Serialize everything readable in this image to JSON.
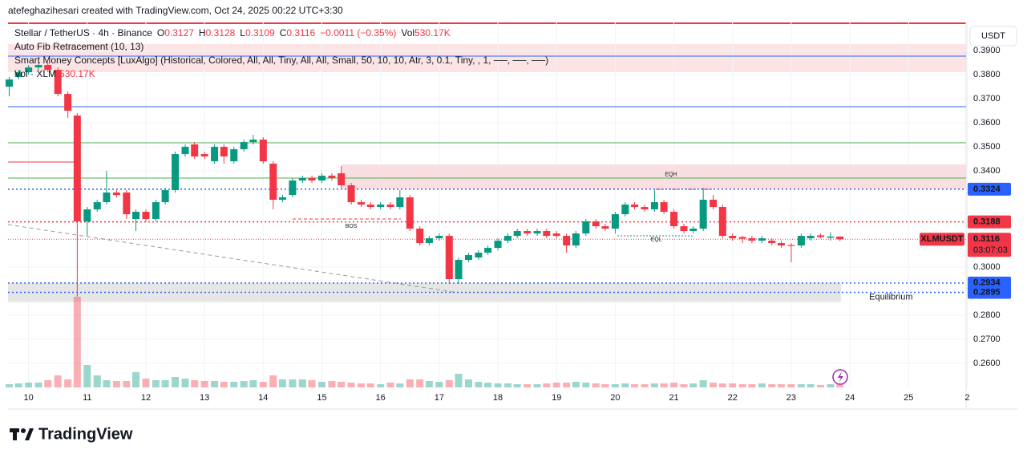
{
  "header": {
    "title": "atefeghazihesari created with TradingView.com, Oct 24, 2025 00:22 UTC+3:30",
    "currency": "USDT",
    "brand": "TradingView"
  },
  "legend": {
    "symbol": "Stellar / TetherUS · 4h · Binance",
    "ohlc": [
      {
        "key": "O",
        "value": "0.3127"
      },
      {
        "key": "H",
        "value": "0.3128"
      },
      {
        "key": "L",
        "value": "0.3109"
      },
      {
        "key": "C",
        "value": "0.3116"
      }
    ],
    "change": "−0.0011 (−0.35%)",
    "vol_key": "Vol",
    "vol": "530.17K",
    "indicators": [
      "Auto Fib Retracement (10, 13)",
      "Smart Money Concepts [LuxAlgo] (Historical, Colored, All, All, Tiny, All, All, Small, 50, 10, 10, Atr, 3, 0.1, Tiny, , 1, ──, ──, ──)"
    ],
    "volume_key": "Vol · XLM",
    "volume_value": "530.17K"
  },
  "chart_data": {
    "type": "candlestick",
    "up_color": "#089981",
    "down_color": "#f23645",
    "x": [
      9.67,
      9.83,
      10,
      10.17,
      10.33,
      10.5,
      10.67,
      10.83,
      11,
      11.17,
      11.33,
      11.5,
      11.67,
      11.83,
      12,
      12.17,
      12.33,
      12.5,
      12.67,
      12.83,
      13,
      13.17,
      13.33,
      13.5,
      13.67,
      13.83,
      14,
      14.17,
      14.33,
      14.5,
      14.67,
      14.83,
      15,
      15.17,
      15.33,
      15.5,
      15.67,
      15.83,
      16,
      16.17,
      16.33,
      16.5,
      16.67,
      16.83,
      17,
      17.17,
      17.33,
      17.5,
      17.67,
      17.83,
      18,
      18.17,
      18.33,
      18.5,
      18.67,
      18.83,
      19,
      19.17,
      19.33,
      19.5,
      19.67,
      19.83,
      20,
      20.17,
      20.33,
      20.5,
      20.67,
      20.83,
      21,
      21.17,
      21.33,
      21.5,
      21.67,
      21.83,
      22,
      22.17,
      22.33,
      22.5,
      22.67,
      22.83,
      23,
      23.17,
      23.33,
      23.5,
      23.67,
      23.83
    ],
    "open": [
      0.375,
      0.379,
      0.381,
      0.383,
      0.384,
      0.382,
      0.372,
      0.363,
      0.319,
      0.324,
      0.327,
      0.331,
      0.331,
      0.32,
      0.323,
      0.32,
      0.327,
      0.332,
      0.347,
      0.351,
      0.347,
      0.344,
      0.35,
      0.344,
      0.349,
      0.352,
      0.353,
      0.343,
      0.328,
      0.33,
      0.336,
      0.337,
      0.336,
      0.338,
      0.339,
      0.334,
      0.327,
      0.326,
      0.325,
      0.326,
      0.325,
      0.329,
      0.316,
      0.31,
      0.312,
      0.313,
      0.295,
      0.303,
      0.304,
      0.306,
      0.308,
      0.311,
      0.313,
      0.315,
      0.314,
      0.315,
      0.314,
      0.313,
      0.309,
      0.314,
      0.319,
      0.317,
      0.316,
      0.322,
      0.326,
      0.325,
      0.324,
      0.327,
      0.323,
      0.317,
      0.315,
      0.316,
      0.328,
      0.325,
      0.313,
      0.3125,
      0.312,
      0.311,
      0.311,
      0.31,
      0.3092,
      0.309,
      0.312,
      0.3132,
      0.3122,
      0.3127
    ],
    "high": [
      0.379,
      0.382,
      0.384,
      0.385,
      0.385,
      0.383,
      0.373,
      0.364,
      0.325,
      0.328,
      0.34,
      0.332,
      0.332,
      0.324,
      0.324,
      0.328,
      0.333,
      0.348,
      0.351,
      0.352,
      0.348,
      0.351,
      0.351,
      0.35,
      0.353,
      0.355,
      0.354,
      0.344,
      0.33,
      0.337,
      0.338,
      0.338,
      0.339,
      0.339,
      0.342,
      0.335,
      0.328,
      0.327,
      0.327,
      0.327,
      0.332,
      0.33,
      0.317,
      0.313,
      0.314,
      0.314,
      0.304,
      0.306,
      0.307,
      0.309,
      0.312,
      0.314,
      0.316,
      0.316,
      0.316,
      0.316,
      0.315,
      0.314,
      0.315,
      0.32,
      0.32,
      0.318,
      0.323,
      0.327,
      0.327,
      0.326,
      0.332,
      0.328,
      0.324,
      0.318,
      0.317,
      0.333,
      0.33,
      0.326,
      0.314,
      0.313,
      0.313,
      0.313,
      0.312,
      0.311,
      0.31,
      0.314,
      0.314,
      0.314,
      0.3145,
      0.3128
    ],
    "low": [
      0.371,
      0.378,
      0.38,
      0.382,
      0.381,
      0.371,
      0.362,
      0.2877,
      0.313,
      0.323,
      0.326,
      0.329,
      0.32,
      0.315,
      0.319,
      0.319,
      0.326,
      0.331,
      0.346,
      0.345,
      0.345,
      0.343,
      0.343,
      0.343,
      0.348,
      0.351,
      0.343,
      0.324,
      0.327,
      0.329,
      0.335,
      0.335,
      0.335,
      0.336,
      0.333,
      0.326,
      0.325,
      0.324,
      0.324,
      0.324,
      0.324,
      0.315,
      0.309,
      0.309,
      0.311,
      0.293,
      0.293,
      0.302,
      0.303,
      0.305,
      0.307,
      0.31,
      0.312,
      0.313,
      0.313,
      0.312,
      0.312,
      0.306,
      0.308,
      0.313,
      0.316,
      0.315,
      0.314,
      0.321,
      0.324,
      0.323,
      0.323,
      0.322,
      0.316,
      0.314,
      0.314,
      0.315,
      0.324,
      0.312,
      0.311,
      0.31,
      0.31,
      0.31,
      0.309,
      0.308,
      0.302,
      0.308,
      0.311,
      0.312,
      0.311,
      0.3109
    ],
    "close": [
      0.378,
      0.381,
      0.383,
      0.384,
      0.382,
      0.372,
      0.365,
      0.319,
      0.324,
      0.327,
      0.331,
      0.33,
      0.322,
      0.323,
      0.32,
      0.327,
      0.332,
      0.347,
      0.35,
      0.346,
      0.346,
      0.35,
      0.346,
      0.349,
      0.352,
      0.353,
      0.344,
      0.328,
      0.329,
      0.336,
      0.337,
      0.336,
      0.338,
      0.337,
      0.334,
      0.327,
      0.326,
      0.325,
      0.326,
      0.325,
      0.329,
      0.316,
      0.31,
      0.312,
      0.313,
      0.295,
      0.303,
      0.305,
      0.306,
      0.308,
      0.311,
      0.313,
      0.315,
      0.314,
      0.315,
      0.313,
      0.313,
      0.309,
      0.314,
      0.319,
      0.317,
      0.316,
      0.322,
      0.326,
      0.325,
      0.324,
      0.327,
      0.323,
      0.317,
      0.315,
      0.316,
      0.328,
      0.325,
      0.313,
      0.312,
      0.3118,
      0.311,
      0.312,
      0.31,
      0.309,
      0.3088,
      0.313,
      0.313,
      0.3125,
      0.3127,
      0.3116
    ],
    "volume": [
      520,
      650,
      780,
      780,
      1170,
      1950,
      1300,
      14690,
      3640,
      1950,
      1170,
      1040,
      1040,
      2470,
      1430,
      1170,
      1170,
      1690,
      1430,
      1170,
      1040,
      1040,
      910,
      910,
      1040,
      1170,
      910,
      1950,
      1300,
      1300,
      1300,
      1170,
      910,
      1040,
      910,
      780,
      650,
      650,
      520,
      780,
      650,
      1300,
      1300,
      1040,
      910,
      1170,
      2210,
      1300,
      910,
      780,
      650,
      650,
      520,
      520,
      520,
      650,
      780,
      780,
      910,
      780,
      650,
      520,
      520,
      650,
      520,
      520,
      650,
      650,
      780,
      520,
      650,
      1170,
      780,
      650,
      650,
      520,
      520,
      650,
      520,
      520,
      520,
      520,
      520,
      390,
      520,
      530.17
    ],
    "xlim": [
      9.65,
      25.98
    ],
    "xticks": [
      10,
      11,
      12,
      13,
      14,
      15,
      16,
      17,
      18,
      19,
      20,
      21,
      22,
      23,
      24,
      25,
      {
        "value": 26,
        "label": "2"
      }
    ],
    "ylim": [
      0.25,
      0.4017
    ],
    "yticks": [
      {
        "value": 0.39,
        "label": "0.3900"
      },
      {
        "value": 0.38,
        "label": "0.3800"
      },
      {
        "value": 0.37,
        "label": "0.3700"
      },
      {
        "value": 0.36,
        "label": "0.3600"
      },
      {
        "value": 0.35,
        "label": "0.3500"
      },
      {
        "value": 0.34,
        "label": "0.3400"
      },
      {
        "value": 0.3,
        "label": "0.3000"
      },
      {
        "value": 0.28,
        "label": "0.2800"
      },
      {
        "value": 0.27,
        "label": "0.2700"
      },
      {
        "value": 0.26,
        "label": "0.2600"
      }
    ],
    "grid": true,
    "levels": [
      {
        "value": 0.3877,
        "color": "#2962ff"
      },
      {
        "value": 0.3667,
        "color": "#2962ff"
      },
      {
        "value": 0.3517,
        "color": "#4caf50"
      },
      {
        "value": 0.337,
        "color": "#4caf50"
      }
    ],
    "zones": [
      {
        "top": 0.3427,
        "bottom": 0.3324,
        "from": 15.33,
        "to": 25.98,
        "color": "#f8d7da"
      },
      {
        "top": 0.2934,
        "bottom": 0.2855,
        "from": 9.65,
        "to": 23.85,
        "color": "#e0e0e0"
      }
    ],
    "price_labels": [
      {
        "value": 0.3324,
        "color": "#2962ff"
      },
      {
        "value": 0.3188,
        "color": "#f23645"
      },
      {
        "value": 0.3116,
        "color": "#f23645",
        "tag": "XLMUSDT",
        "countdown": "03:07:03"
      },
      {
        "value": 0.2934,
        "color": "#2962ff"
      },
      {
        "value": 0.2895,
        "color": "#2962ff"
      }
    ],
    "annotations": [
      {
        "text": "EQH",
        "x": 20.95,
        "y": 0.3385
      },
      {
        "text": "BOS",
        "x": 15.5,
        "y": 0.317
      },
      {
        "text": "EQL",
        "x": 20.7,
        "y": 0.3115
      },
      {
        "text": "Equilibrium",
        "x": 24.7,
        "y": 0.2875
      }
    ]
  }
}
